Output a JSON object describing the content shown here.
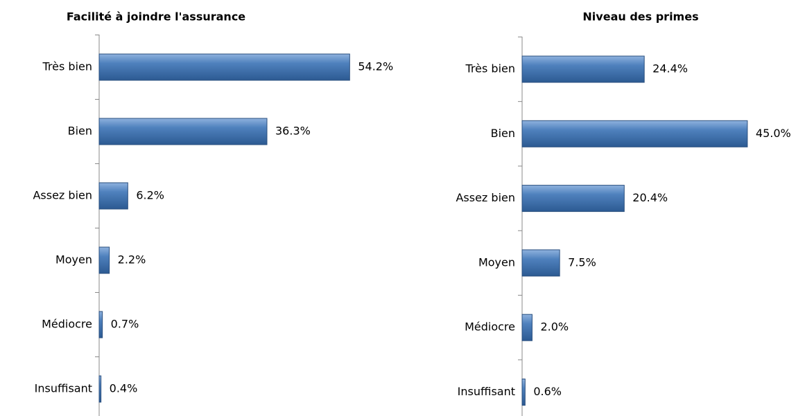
{
  "chart_data": [
    {
      "type": "barh",
      "title": "Facilité à joindre l'assurance",
      "categories": [
        "Très bien",
        "Bien",
        "Assez bien",
        "Moyen",
        "Médiocre",
        "Insuffisant"
      ],
      "values": [
        54.2,
        36.3,
        6.2,
        2.2,
        0.7,
        0.4
      ],
      "value_labels": [
        "54.2%",
        "36.3%",
        "6.2%",
        "2.2%",
        "0.7%",
        "0.4%"
      ],
      "color": "#4f81bd",
      "xlim": [
        0,
        60
      ]
    },
    {
      "type": "barh",
      "title": "Niveau des primes",
      "categories": [
        "Très bien",
        "Bien",
        "Assez bien",
        "Moyen",
        "Médiocre",
        "Insuffisant"
      ],
      "values": [
        24.4,
        45.0,
        20.4,
        7.5,
        2.0,
        0.6
      ],
      "value_labels": [
        "24.4%",
        "45.0%",
        "20.4%",
        "7.5%",
        "2.0%",
        "0.6%"
      ],
      "color": "#4f81bd",
      "xlim": [
        0,
        50
      ]
    }
  ]
}
